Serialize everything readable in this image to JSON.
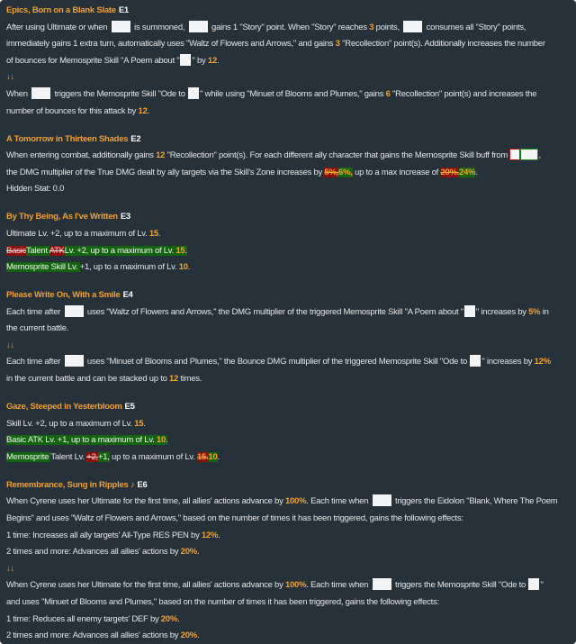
{
  "colors": {
    "background": "#263139",
    "title": "#f0a030",
    "highlight": "#f3a330",
    "removed": "#8b0f0f",
    "added": "#14640f"
  },
  "sections": [
    {
      "title": "Epics, Born on a Blank Slate",
      "tag": "E1",
      "lines": [
        [
          [
            "t",
            "After using Ultimate or when "
          ],
          [
            "box",
            ""
          ],
          [
            "t",
            " is summoned, "
          ],
          [
            "box",
            ""
          ],
          [
            "t",
            " gains 1 \"Story\" point. When \"Story\" reaches "
          ],
          [
            "o",
            "3"
          ],
          [
            "t",
            " points, "
          ],
          [
            "box",
            ""
          ],
          [
            "t",
            " consumes all \"Story\" points,"
          ]
        ],
        [
          [
            "t",
            "immediately gains 1 extra turn, automatically uses \"Waltz of Flowers and Arrows,\" and gains "
          ],
          [
            "o",
            "3"
          ],
          [
            "t",
            " \"Recollection\" point(s). Additionally increases the number"
          ]
        ],
        [
          [
            "t",
            "of bounces for Memosprite Skill \"A Poem about \""
          ],
          [
            "sbox",
            ""
          ],
          [
            "t",
            "\" by "
          ],
          [
            "o",
            "12"
          ],
          [
            "t",
            "."
          ]
        ],
        [
          [
            "arrow",
            "↓↓"
          ]
        ],
        [
          [
            "t",
            "When "
          ],
          [
            "box",
            ""
          ],
          [
            "t",
            " triggers the Memosprite Skill \"Ode to "
          ],
          [
            "sbox",
            ""
          ],
          [
            "t",
            "\" while using \"Minuet of Blooms and Plumes,\" gains "
          ],
          [
            "o",
            "6"
          ],
          [
            "t",
            " \"Recollection\" point(s) and increases the"
          ]
        ],
        [
          [
            "t",
            "number of bounces for this attack by "
          ],
          [
            "o",
            "12"
          ],
          [
            "t",
            "."
          ]
        ]
      ]
    },
    {
      "title": "A Tomorrow in Thirteen Shades",
      "tag": "E2",
      "lines": [
        [
          [
            "t",
            "When entering combat, additionally gains "
          ],
          [
            "o",
            "12"
          ],
          [
            "t",
            " \"Recollection\" point(s). For each different ally character that gains the Memosprite Skill buff from "
          ],
          [
            "rbox",
            ""
          ],
          [
            "gbox",
            ""
          ],
          [
            "t",
            ","
          ]
        ],
        [
          [
            "t",
            "the DMG multiplier of the True DMG dealt by ally targets via the Skill's Zone increases by "
          ],
          [
            "do",
            "5%,"
          ],
          [
            "go",
            "6%,"
          ],
          [
            "t",
            " up to a max increase of "
          ],
          [
            "do",
            "20%."
          ],
          [
            "go",
            "24%"
          ],
          [
            "t",
            "."
          ]
        ],
        [
          [
            "t",
            "Hidden Stat: 0.0"
          ]
        ]
      ]
    },
    {
      "title": "By Thy Being, As I've Written",
      "tag": "E3",
      "lines": [
        [
          [
            "t",
            "Ultimate Lv. +2, up to a maximum of Lv. "
          ],
          [
            "o",
            "15"
          ],
          [
            "t",
            "."
          ]
        ],
        [
          [
            "d",
            "Basic"
          ],
          [
            "g",
            "Talent "
          ],
          [
            "d",
            "ATK"
          ],
          [
            "g",
            "Lv. +2, up to a maximum of Lv. "
          ],
          [
            "go",
            "15"
          ],
          [
            "g",
            "."
          ]
        ],
        [
          [
            "g",
            "Memosprite Skill Lv. "
          ],
          [
            "t",
            "+1, up to a maximum of Lv. "
          ],
          [
            "o",
            "10"
          ],
          [
            "t",
            "."
          ]
        ]
      ]
    },
    {
      "title": "Please Write On, With a Smile",
      "tag": "E4",
      "lines": [
        [
          [
            "t",
            "Each time after "
          ],
          [
            "box",
            ""
          ],
          [
            "t",
            " uses \"Waltz of Flowers and Arrows,\" the DMG multiplier of the triggered Memosprite Skill \"A Poem about \""
          ],
          [
            "sbox",
            ""
          ],
          [
            "t",
            "\" increases by "
          ],
          [
            "o",
            "5%"
          ],
          [
            "t",
            " in"
          ]
        ],
        [
          [
            "t",
            "the current battle."
          ]
        ],
        [
          [
            "arrow",
            "↓↓"
          ]
        ],
        [
          [
            "t",
            "Each time after "
          ],
          [
            "box",
            ""
          ],
          [
            "t",
            " uses \"Minuet of Blooms and Plumes,\" the Bounce DMG multiplier of the triggered Memosprite Skill \"Ode to "
          ],
          [
            "sbox",
            ""
          ],
          [
            "t",
            "\" increases by "
          ],
          [
            "o",
            "12%"
          ]
        ],
        [
          [
            "t",
            "in the current battle and can be stacked up to "
          ],
          [
            "o",
            "12"
          ],
          [
            "t",
            " times."
          ]
        ]
      ]
    },
    {
      "title": "Gaze, Steeped in Yesterbloom",
      "tag": "E5",
      "lines": [
        [
          [
            "t",
            "Skill Lv. +2, up to a maximum of Lv. "
          ],
          [
            "o",
            "15"
          ],
          [
            "t",
            "."
          ]
        ],
        [
          [
            "g",
            "Basic ATK Lv. +1, up to a maximum of Lv. "
          ],
          [
            "go",
            "10"
          ],
          [
            "g",
            "."
          ]
        ],
        [
          [
            "g",
            "Memosprite "
          ],
          [
            "t",
            "Talent Lv. "
          ],
          [
            "d",
            "+2,"
          ],
          [
            "g",
            "+1,"
          ],
          [
            "t",
            " up to a maximum of Lv. "
          ],
          [
            "do",
            "15."
          ],
          [
            "go",
            "10"
          ],
          [
            "t",
            "."
          ]
        ]
      ]
    },
    {
      "title": "Remembrance, Sung in Ripples ♪",
      "tag": "E6",
      "lines": [
        [
          [
            "t",
            "When Cyrene uses her Ultimate for the first time, all allies' actions advance by "
          ],
          [
            "o",
            "100%"
          ],
          [
            "t",
            ". Each time when "
          ],
          [
            "box",
            ""
          ],
          [
            "t",
            " triggers the Eidolon \"Blank, Where The Poem"
          ]
        ],
        [
          [
            "t",
            "Begins\" and uses \"Waltz of Flowers and Arrows,\" based on the number of times it has been triggered, gains the following effects:"
          ]
        ],
        [
          [
            "t",
            "1 time: Increases all ally targets' All-Type RES PEN by "
          ],
          [
            "o",
            "12%"
          ],
          [
            "t",
            "."
          ]
        ],
        [
          [
            "t",
            "2 times and more: Advances all allies' actions by "
          ],
          [
            "o",
            "20%"
          ],
          [
            "t",
            "."
          ]
        ],
        [
          [
            "arrow",
            "↓↓"
          ]
        ],
        [
          [
            "t",
            "When Cyrene uses her Ultimate for the first time, all allies' actions advance by "
          ],
          [
            "o",
            "100%"
          ],
          [
            "t",
            ". Each time when "
          ],
          [
            "box",
            ""
          ],
          [
            "t",
            " triggers the Memosprite Skill \"Ode to "
          ],
          [
            "sbox",
            ""
          ],
          [
            "t",
            "\""
          ]
        ],
        [
          [
            "t",
            "and uses \"Minuet of Blooms and Plumes,\" based on the number of times it has been triggered, gains the following effects:"
          ]
        ],
        [
          [
            "t",
            "1 time: Reduces all enemy targets' DEF by "
          ],
          [
            "o",
            "20%"
          ],
          [
            "t",
            "."
          ]
        ],
        [
          [
            "t",
            "2 times and more: Advances all allies' actions by "
          ],
          [
            "o",
            "20%"
          ],
          [
            "t",
            "."
          ]
        ]
      ]
    }
  ]
}
